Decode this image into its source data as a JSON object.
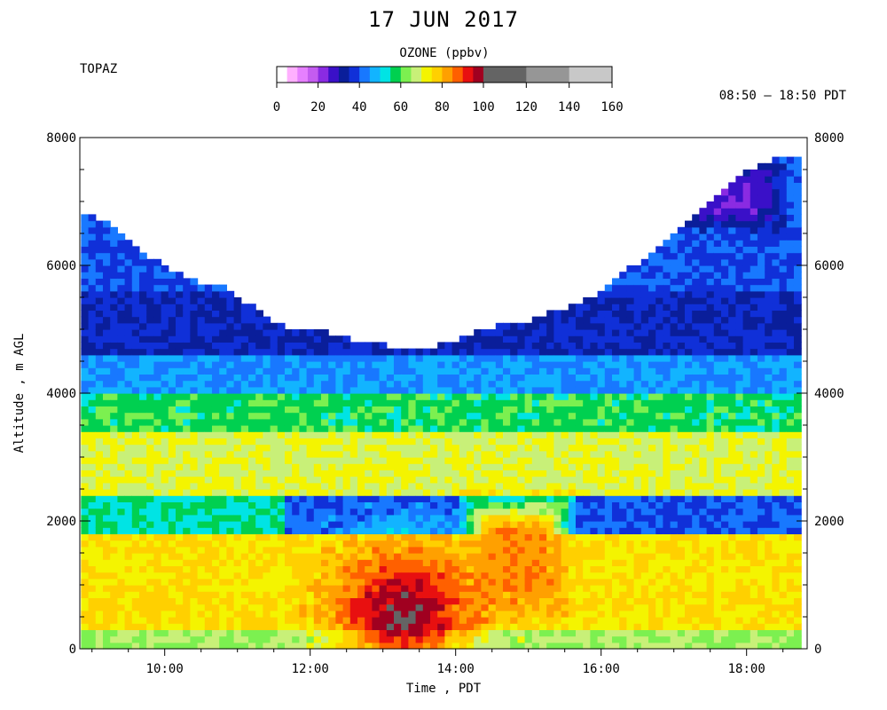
{
  "header": {
    "title": "17 JUN 2017",
    "site": "TOPAZ",
    "time_range": "08:50 – 18:50 PDT"
  },
  "colorbar": {
    "title": "OZONE (ppbv)",
    "tick_labels": [
      "0",
      "20",
      "40",
      "60",
      "80",
      "100",
      "120",
      "140",
      "160"
    ],
    "segments": [
      {
        "from": 0,
        "to": 5,
        "color": "#ffffff"
      },
      {
        "from": 5,
        "to": 10,
        "color": "#ffb0ff"
      },
      {
        "from": 10,
        "to": 15,
        "color": "#e680ff"
      },
      {
        "from": 15,
        "to": 20,
        "color": "#c45cf0"
      },
      {
        "from": 20,
        "to": 25,
        "color": "#8a2be2"
      },
      {
        "from": 25,
        "to": 30,
        "color": "#3a10c8"
      },
      {
        "from": 30,
        "to": 35,
        "color": "#0a1e9a"
      },
      {
        "from": 35,
        "to": 40,
        "color": "#1030d8"
      },
      {
        "from": 40,
        "to": 45,
        "color": "#1878ff"
      },
      {
        "from": 45,
        "to": 50,
        "color": "#12b4ff"
      },
      {
        "from": 50,
        "to": 55,
        "color": "#00e4e4"
      },
      {
        "from": 55,
        "to": 60,
        "color": "#00d050"
      },
      {
        "from": 60,
        "to": 65,
        "color": "#7cf050"
      },
      {
        "from": 65,
        "to": 70,
        "color": "#c8f078"
      },
      {
        "from": 70,
        "to": 75,
        "color": "#f4f400"
      },
      {
        "from": 75,
        "to": 80,
        "color": "#ffd000"
      },
      {
        "from": 80,
        "to": 85,
        "color": "#ffa000"
      },
      {
        "from": 85,
        "to": 90,
        "color": "#ff6000"
      },
      {
        "from": 90,
        "to": 95,
        "color": "#e81010"
      },
      {
        "from": 95,
        "to": 100,
        "color": "#a00020"
      },
      {
        "from": 100,
        "to": 120,
        "color": "#646464"
      },
      {
        "from": 120,
        "to": 140,
        "color": "#969696"
      },
      {
        "from": 140,
        "to": 160,
        "color": "#c8c8c8"
      }
    ]
  },
  "chart_data": {
    "type": "heatmap",
    "title": "17 JUN 2017",
    "xlabel": "Time , PDT",
    "ylabel": "Altitude , m AGL",
    "x_tick_labels": [
      "10:00",
      "12:00",
      "14:00",
      "16:00",
      "18:00"
    ],
    "x_tick_values": [
      10,
      12,
      14,
      16,
      18
    ],
    "xlim": [
      8.833,
      18.833
    ],
    "y_tick_labels": [
      "0",
      "2000",
      "4000",
      "6000",
      "8000"
    ],
    "y_tick_values": [
      0,
      2000,
      4000,
      6000,
      8000
    ],
    "ylim": [
      0,
      8000
    ],
    "grid": false,
    "colorbar_label": "OZONE (ppbv)",
    "colorbar_range": [
      0,
      160
    ],
    "data_ceiling_m": [
      {
        "x": 8.85,
        "y": 6820
      },
      {
        "x": 9.15,
        "y": 6650
      },
      {
        "x": 9.5,
        "y": 6350
      },
      {
        "x": 9.9,
        "y": 6000
      },
      {
        "x": 10.3,
        "y": 5750
      },
      {
        "x": 10.8,
        "y": 5600
      },
      {
        "x": 11.2,
        "y": 5300
      },
      {
        "x": 11.6,
        "y": 5000
      },
      {
        "x": 12.0,
        "y": 5000
      },
      {
        "x": 12.5,
        "y": 4800
      },
      {
        "x": 13.0,
        "y": 4700
      },
      {
        "x": 13.5,
        "y": 4600
      },
      {
        "x": 14.0,
        "y": 4800
      },
      {
        "x": 14.5,
        "y": 5000
      },
      {
        "x": 15.0,
        "y": 5100
      },
      {
        "x": 15.5,
        "y": 5300
      },
      {
        "x": 16.0,
        "y": 5550
      },
      {
        "x": 16.5,
        "y": 6000
      },
      {
        "x": 17.0,
        "y": 6500
      },
      {
        "x": 17.5,
        "y": 7000
      },
      {
        "x": 18.0,
        "y": 7400
      },
      {
        "x": 18.5,
        "y": 7700
      },
      {
        "x": 18.75,
        "y": 7700
      }
    ],
    "layers": [
      {
        "alt_from": 0,
        "alt_to": 300,
        "approx_ppbv": 65
      },
      {
        "alt_from": 300,
        "alt_to": 1800,
        "approx_ppbv": 75
      },
      {
        "alt_from": 1800,
        "alt_to": 2400,
        "approx_ppbv": 55,
        "note_x_range": [
          8.85,
          11.6
        ]
      },
      {
        "alt_from": 2400,
        "alt_to": 3400,
        "approx_ppbv": 70
      },
      {
        "alt_from": 3400,
        "alt_to": 4000,
        "approx_ppbv": 58
      },
      {
        "alt_from": 4000,
        "alt_to": 4600,
        "approx_ppbv": 45
      },
      {
        "alt_from": 4600,
        "alt_to": 5600,
        "approx_ppbv": 35
      },
      {
        "alt_from": 5600,
        "alt_to": 7800,
        "approx_ppbv": 40
      }
    ],
    "features": [
      {
        "name": "boundary-layer max",
        "x": 13.3,
        "alt": 600,
        "approx_ppbv": 100
      },
      {
        "name": "afternoon plume",
        "x_range": [
          14.0,
          15.7
        ],
        "alt_range": [
          300,
          2600
        ],
        "approx_ppbv": 85
      },
      {
        "name": "low ozone aloft",
        "x_range": [
          17.0,
          18.6
        ],
        "alt_range": [
          6500,
          7700
        ],
        "approx_ppbv": 25
      }
    ]
  }
}
